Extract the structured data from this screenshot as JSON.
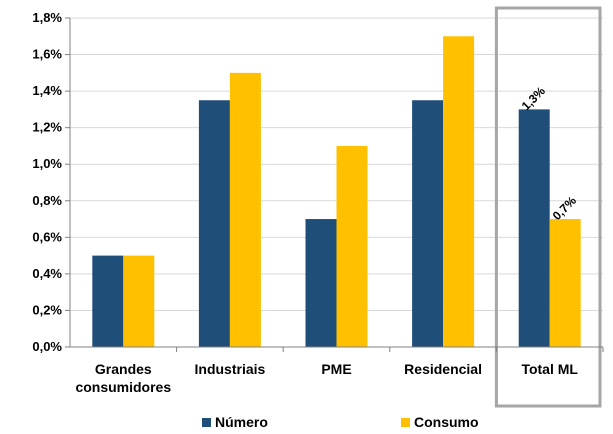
{
  "chart_data": {
    "type": "bar",
    "title": "",
    "xlabel": "",
    "ylabel": "",
    "categories": [
      [
        "Grandes",
        "consumidores"
      ],
      [
        "Industriais"
      ],
      [
        "PME"
      ],
      [
        "Residencial"
      ],
      [
        "Total ML"
      ]
    ],
    "series": [
      {
        "name": "Número",
        "color": "#1F4E79",
        "values": [
          0.5,
          1.35,
          0.7,
          1.35,
          1.3
        ]
      },
      {
        "name": "Consumo",
        "color": "#FFC000",
        "values": [
          0.5,
          1.5,
          1.1,
          1.7,
          0.7
        ]
      }
    ],
    "ylim": [
      0,
      1.8
    ],
    "yticks": [
      "0,0%",
      "0,2%",
      "0,4%",
      "0,6%",
      "0,8%",
      "1,0%",
      "1,2%",
      "1,4%",
      "1,6%",
      "1,8%"
    ],
    "grid": true,
    "legend": "bottom",
    "highlight_category": "Total ML",
    "highlight_color": "#A6A6A6",
    "data_labels": [
      {
        "category": "Total ML",
        "series": "Número",
        "text": "1,3%"
      },
      {
        "category": "Total ML",
        "series": "Consumo",
        "text": "0,7%"
      }
    ]
  }
}
